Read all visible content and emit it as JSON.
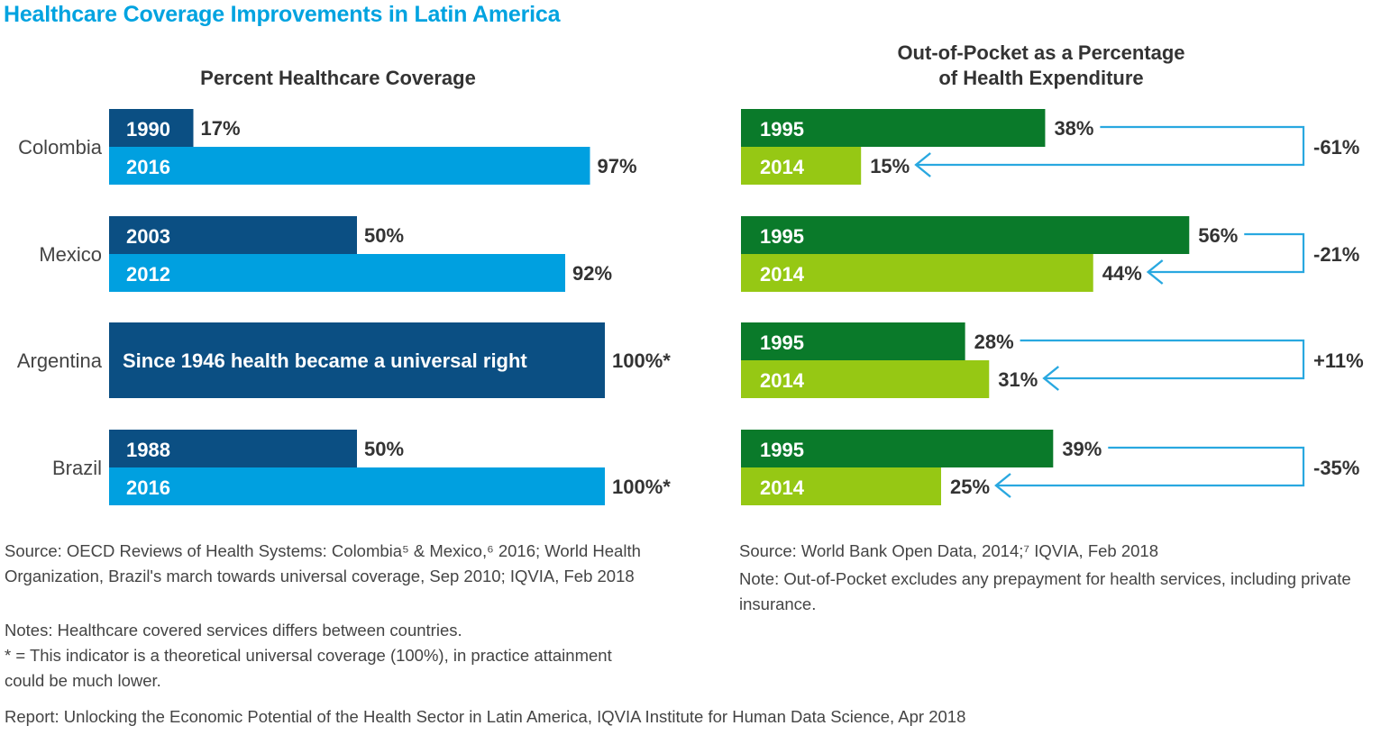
{
  "title": "Healthcare Coverage Improvements in Latin America",
  "colors": {
    "title_blue": "#00a3e0",
    "dark_blue": "#0b4f83",
    "light_blue": "#00a0e0",
    "dark_green": "#0a7a2a",
    "light_green": "#96c814",
    "arrow_blue": "#29a8e0"
  },
  "chart_data": [
    {
      "type": "bar",
      "orientation": "horizontal",
      "title": "Percent Healthcare Coverage",
      "xlim": [
        0,
        100
      ],
      "unit": "%",
      "groups": [
        {
          "category": "Colombia",
          "bars": [
            {
              "year": "1990",
              "value": 17,
              "label": "17%",
              "color": "dark_blue"
            },
            {
              "year": "2016",
              "value": 97,
              "label": "97%",
              "color": "light_blue"
            }
          ]
        },
        {
          "category": "Mexico",
          "bars": [
            {
              "year": "2003",
              "value": 50,
              "label": "50%",
              "color": "dark_blue"
            },
            {
              "year": "2012",
              "value": 92,
              "label": "92%",
              "color": "light_blue"
            }
          ]
        },
        {
          "category": "Argentina",
          "bars": [
            {
              "year": "Since 1946 health became a universal right",
              "value": 100,
              "label": "100%*",
              "color": "dark_blue",
              "full": true
            }
          ]
        },
        {
          "category": "Brazil",
          "bars": [
            {
              "year": "1988",
              "value": 50,
              "label": "50%",
              "color": "dark_blue"
            },
            {
              "year": "2016",
              "value": 100,
              "label": "100%*",
              "color": "light_blue"
            }
          ]
        }
      ]
    },
    {
      "type": "bar",
      "orientation": "horizontal",
      "title": [
        "Out-of-Pocket as a Percentage",
        "of Health Expenditure"
      ],
      "xlim": [
        0,
        100
      ],
      "unit": "%",
      "groups": [
        {
          "bars": [
            {
              "year": "1995",
              "value": 38,
              "label": "38%",
              "color": "dark_green"
            },
            {
              "year": "2014",
              "value": 15,
              "label": "15%",
              "color": "light_green"
            }
          ],
          "change": "-61%"
        },
        {
          "bars": [
            {
              "year": "1995",
              "value": 56,
              "label": "56%",
              "color": "dark_green"
            },
            {
              "year": "2014",
              "value": 44,
              "label": "44%",
              "color": "light_green"
            }
          ],
          "change": "-21%"
        },
        {
          "bars": [
            {
              "year": "1995",
              "value": 28,
              "label": "28%",
              "color": "dark_green"
            },
            {
              "year": "2014",
              "value": 31,
              "label": "31%",
              "color": "light_green"
            }
          ],
          "change": "+11%"
        },
        {
          "bars": [
            {
              "year": "1995",
              "value": 39,
              "label": "39%",
              "color": "dark_green"
            },
            {
              "year": "2014",
              "value": 25,
              "label": "25%",
              "color": "light_green"
            }
          ],
          "change": "-35%"
        }
      ]
    }
  ],
  "notes": {
    "left_source": "Source: OECD Reviews of Health Systems: Colombia⁵ & Mexico,⁶ 2016; World Health Organization, Brazil's march towards universal coverage, Sep 2010; IQVIA, Feb 2018",
    "left_notes": "Notes: Healthcare covered services differs between countries.",
    "left_asterisk": "* = This indicator is a theoretical universal coverage (100%), in practice attainment could be much lower.",
    "right_source": "Source: World Bank Open Data, 2014;⁷ IQVIA, Feb 2018",
    "right_note": "Note: Out-of-Pocket excludes any prepayment for health services, including private insurance.",
    "report": "Report: Unlocking the Economic Potential of the Health Sector in Latin America, IQVIA Institute for Human Data Science, Apr 2018"
  }
}
